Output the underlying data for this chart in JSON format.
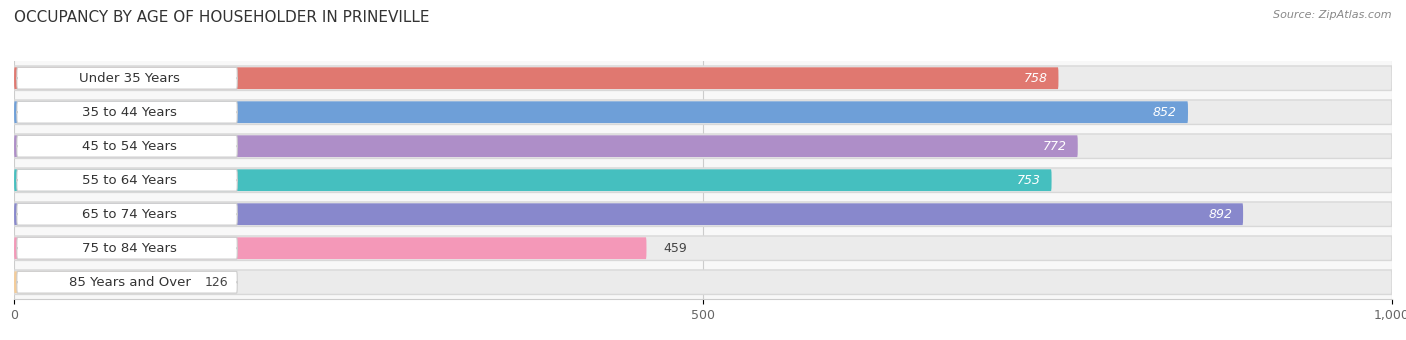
{
  "title": "OCCUPANCY BY AGE OF HOUSEHOLDER IN PRINEVILLE",
  "source": "Source: ZipAtlas.com",
  "categories": [
    "Under 35 Years",
    "35 to 44 Years",
    "45 to 54 Years",
    "55 to 64 Years",
    "65 to 74 Years",
    "75 to 84 Years",
    "85 Years and Over"
  ],
  "values": [
    758,
    852,
    772,
    753,
    892,
    459,
    126
  ],
  "bar_colors": [
    "#E07870",
    "#6E9FD8",
    "#AE8EC8",
    "#45BFBF",
    "#8888CC",
    "#F498B8",
    "#F5CC98"
  ],
  "bar_bg_color": "#EBEBEB",
  "bar_border_color": "#D8D8D8",
  "xlim": [
    0,
    1000
  ],
  "xticks": [
    0,
    500,
    1000
  ],
  "bar_height": 0.72,
  "title_fontsize": 11,
  "label_fontsize": 9.5,
  "value_fontsize": 9,
  "background_color": "#FFFFFF",
  "plot_bg_color": "#F8F8F8"
}
